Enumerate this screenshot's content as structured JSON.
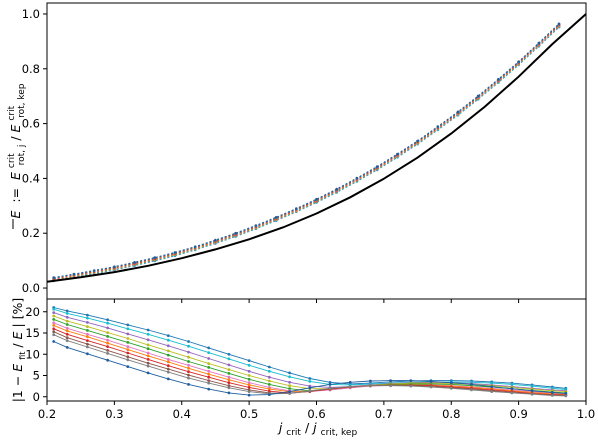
{
  "chart_data": [
    {
      "panel": "top",
      "type": "line",
      "ylabel_parts": {
        "lhs": "E",
        "assign": ":=",
        "num_base": "E",
        "num_sup": "crit",
        "num_sub": "rot, j",
        "slash": "/",
        "den_base": "E",
        "den_sup": "crit",
        "den_sub": "rot, kep"
      },
      "xlim": [
        0.2,
        1.0
      ],
      "ylim": [
        -0.04,
        1.04
      ],
      "yticks": [
        "0.0",
        "0.2",
        "0.4",
        "0.6",
        "0.8",
        "1.0"
      ],
      "grid": false,
      "fit_curve": {
        "color": "#000000",
        "x": [
          0.2,
          0.25,
          0.3,
          0.35,
          0.4,
          0.45,
          0.5,
          0.55,
          0.6,
          0.65,
          0.7,
          0.75,
          0.8,
          0.85,
          0.9,
          0.95,
          1.0
        ],
        "y": [
          0.023,
          0.039,
          0.058,
          0.081,
          0.109,
          0.141,
          0.178,
          0.221,
          0.272,
          0.331,
          0.399,
          0.476,
          0.564,
          0.662,
          0.771,
          0.89,
          1.0
        ]
      },
      "series_note": "many overlapping dotted model series lying just above the black curve",
      "series_x": [
        0.21,
        0.24,
        0.27,
        0.3,
        0.33,
        0.36,
        0.39,
        0.42,
        0.45,
        0.48,
        0.51,
        0.54,
        0.57,
        0.6,
        0.63,
        0.66,
        0.69,
        0.72,
        0.75,
        0.78,
        0.81,
        0.84,
        0.87,
        0.9,
        0.93,
        0.96
      ],
      "series_y": [
        0.032,
        0.045,
        0.058,
        0.072,
        0.088,
        0.105,
        0.124,
        0.145,
        0.169,
        0.194,
        0.222,
        0.252,
        0.284,
        0.318,
        0.355,
        0.395,
        0.437,
        0.483,
        0.531,
        0.583,
        0.637,
        0.695,
        0.756,
        0.82,
        0.888,
        0.958
      ]
    },
    {
      "panel": "bottom",
      "type": "line",
      "xlabel_parts": {
        "base1": "j",
        "sub1": "crit",
        "slash": "/",
        "base2": "j",
        "sub2": "crit, kep"
      },
      "ylabel_parts": {
        "prefix": "|1 − ",
        "num_base": "E",
        "num_sub": "fit",
        "slash": "/",
        "den_base": "E",
        "suffix": "| [%]"
      },
      "xlim": [
        0.2,
        1.0
      ],
      "ylim": [
        -1,
        23
      ],
      "xticks": [
        "0.2",
        "0.3",
        "0.4",
        "0.5",
        "0.6",
        "0.7",
        "0.8",
        "0.9",
        "1.0"
      ],
      "yticks": [
        "0",
        "5",
        "10",
        "15",
        "20"
      ],
      "grid": false,
      "x": [
        0.21,
        0.23,
        0.26,
        0.29,
        0.32,
        0.35,
        0.38,
        0.41,
        0.44,
        0.47,
        0.5,
        0.53,
        0.56,
        0.59,
        0.62,
        0.65,
        0.68,
        0.71,
        0.74,
        0.77,
        0.8,
        0.83,
        0.86,
        0.89,
        0.92,
        0.95,
        0.97
      ],
      "series": [
        {
          "color": "#1f77b4",
          "values": [
            21.0,
            20.2,
            19.2,
            18.1,
            16.9,
            15.7,
            14.4,
            13.0,
            11.5,
            10.0,
            8.5,
            7.0,
            5.6,
            4.3,
            3.4,
            3.0,
            3.2,
            3.5,
            3.7,
            3.8,
            3.8,
            3.7,
            3.5,
            3.2,
            2.8,
            2.3,
            2.0
          ]
        },
        {
          "color": "#17becf",
          "values": [
            20.6,
            19.6,
            18.5,
            17.3,
            16.0,
            14.7,
            13.3,
            11.9,
            10.4,
            8.9,
            7.4,
            6.0,
            4.7,
            3.6,
            2.9,
            2.8,
            3.0,
            3.2,
            3.4,
            3.5,
            3.5,
            3.4,
            3.2,
            2.9,
            2.5,
            2.0,
            1.7
          ]
        },
        {
          "color": "#9467bd",
          "values": [
            19.8,
            18.7,
            17.5,
            16.2,
            14.8,
            13.4,
            12.0,
            10.5,
            9.0,
            7.5,
            6.0,
            4.6,
            3.4,
            2.5,
            2.2,
            2.4,
            2.8,
            3.1,
            3.3,
            3.4,
            3.3,
            3.1,
            2.8,
            2.4,
            2.0,
            1.6,
            1.4
          ]
        },
        {
          "color": "#bcbd22",
          "values": [
            19.0,
            17.8,
            16.5,
            15.1,
            13.7,
            12.2,
            10.8,
            9.3,
            7.8,
            6.4,
            5.0,
            3.7,
            2.6,
            1.9,
            1.9,
            2.3,
            2.7,
            3.0,
            3.2,
            3.2,
            3.1,
            2.9,
            2.6,
            2.2,
            1.8,
            1.4,
            1.2
          ]
        },
        {
          "color": "#2ca02c",
          "values": [
            18.2,
            17.0,
            15.6,
            14.2,
            12.8,
            11.3,
            9.8,
            8.3,
            6.9,
            5.5,
            4.1,
            2.9,
            1.9,
            1.4,
            1.6,
            2.1,
            2.6,
            2.9,
            3.0,
            3.0,
            2.9,
            2.6,
            2.3,
            1.9,
            1.5,
            1.1,
            0.9
          ]
        },
        {
          "color": "#e377c2",
          "values": [
            17.4,
            16.1,
            14.7,
            13.3,
            11.8,
            10.3,
            8.8,
            7.4,
            6.0,
            4.6,
            3.3,
            2.2,
            1.4,
            1.2,
            1.6,
            2.1,
            2.5,
            2.7,
            2.8,
            2.8,
            2.6,
            2.3,
            2.0,
            1.6,
            1.2,
            0.9,
            0.7
          ]
        },
        {
          "color": "#ff7f0e",
          "values": [
            16.8,
            15.5,
            14.1,
            12.6,
            11.1,
            9.6,
            8.2,
            6.7,
            5.3,
            4.0,
            2.8,
            1.8,
            1.2,
            1.3,
            1.8,
            2.3,
            2.6,
            2.8,
            2.8,
            2.7,
            2.5,
            2.2,
            1.8,
            1.4,
            1.0,
            0.7,
            0.5
          ]
        },
        {
          "color": "#d62728",
          "values": [
            16.0,
            14.7,
            13.2,
            11.8,
            10.3,
            8.8,
            7.3,
            5.9,
            4.6,
            3.3,
            2.2,
            1.3,
            0.9,
            1.2,
            1.8,
            2.3,
            2.6,
            2.7,
            2.7,
            2.6,
            2.3,
            2.0,
            1.6,
            1.2,
            0.8,
            0.5,
            0.4
          ]
        },
        {
          "color": "#8c564b",
          "values": [
            15.3,
            13.9,
            12.4,
            10.9,
            9.4,
            7.9,
            6.5,
            5.1,
            3.8,
            2.6,
            1.6,
            0.9,
            0.8,
            1.3,
            1.9,
            2.4,
            2.6,
            2.7,
            2.6,
            2.4,
            2.1,
            1.8,
            1.4,
            1.0,
            0.7,
            0.4,
            0.3
          ]
        },
        {
          "color": "#7f7f7f",
          "values": [
            14.6,
            13.2,
            11.7,
            10.2,
            8.7,
            7.2,
            5.8,
            4.4,
            3.2,
            2.1,
            1.2,
            0.7,
            0.8,
            1.4,
            2.0,
            2.4,
            2.6,
            2.6,
            2.5,
            2.3,
            2.0,
            1.6,
            1.2,
            0.9,
            0.6,
            0.3,
            0.2
          ]
        },
        {
          "color": "#1f5fa0",
          "values": [
            13.0,
            11.6,
            10.1,
            8.6,
            7.1,
            5.6,
            4.2,
            2.9,
            1.8,
            0.9,
            0.4,
            0.5,
            1.2,
            2.1,
            2.9,
            3.4,
            3.7,
            3.8,
            3.8,
            3.6,
            3.3,
            2.9,
            2.4,
            1.9,
            1.4,
            1.0,
            0.8
          ]
        }
      ]
    }
  ]
}
